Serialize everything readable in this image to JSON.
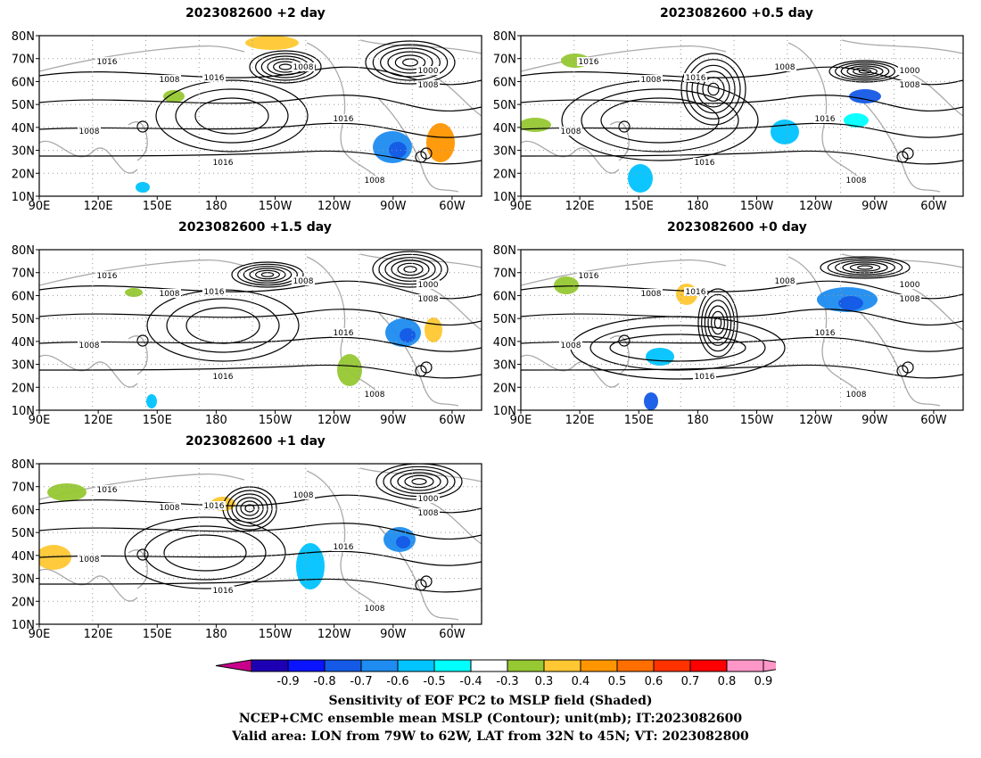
{
  "panels": [
    {
      "title": "2023082600  +2 day"
    },
    {
      "title": "2023082600  +0.5 day"
    },
    {
      "title": "2023082600  +1.5 day"
    },
    {
      "title": "2023082600  +0 day"
    },
    {
      "title": "2023082600  +1 day"
    }
  ],
  "axes": {
    "lat_labels": [
      "80N",
      "70N",
      "60N",
      "50N",
      "40N",
      "30N",
      "20N",
      "10N"
    ],
    "lon_labels": [
      "90E",
      "120E",
      "150E",
      "180",
      "150W",
      "120W",
      "90W",
      "60W"
    ]
  },
  "contour_labels": [
    "1016",
    "1008",
    "1000"
  ],
  "colorbar": {
    "labels": [
      "-0.9",
      "-0.8",
      "-0.7",
      "-0.6",
      "-0.5",
      "-0.4",
      "-0.3",
      "0.3",
      "0.4",
      "0.5",
      "0.6",
      "0.7",
      "0.8",
      "0.9"
    ],
    "colors": [
      "#c8008c",
      "#1e00b4",
      "#0a14ff",
      "#145ae6",
      "#1e8cf0",
      "#00c3ff",
      "#00ffff",
      "#ffffff",
      "#96c832",
      "#ffc832",
      "#ff9600",
      "#ff6e00",
      "#ff3200",
      "#ff0000",
      "#ff96c8"
    ]
  },
  "caption": {
    "line1": "Sensitivity of EOF PC2 to MSLP field (Shaded)",
    "line2": "NCEP+CMC ensemble mean MSLP (Contour); unit(mb); IT:2023082600",
    "line3": "Valid area: LON from 79W to 62W, LAT from 32N to 45N; VT: 2023082800"
  }
}
